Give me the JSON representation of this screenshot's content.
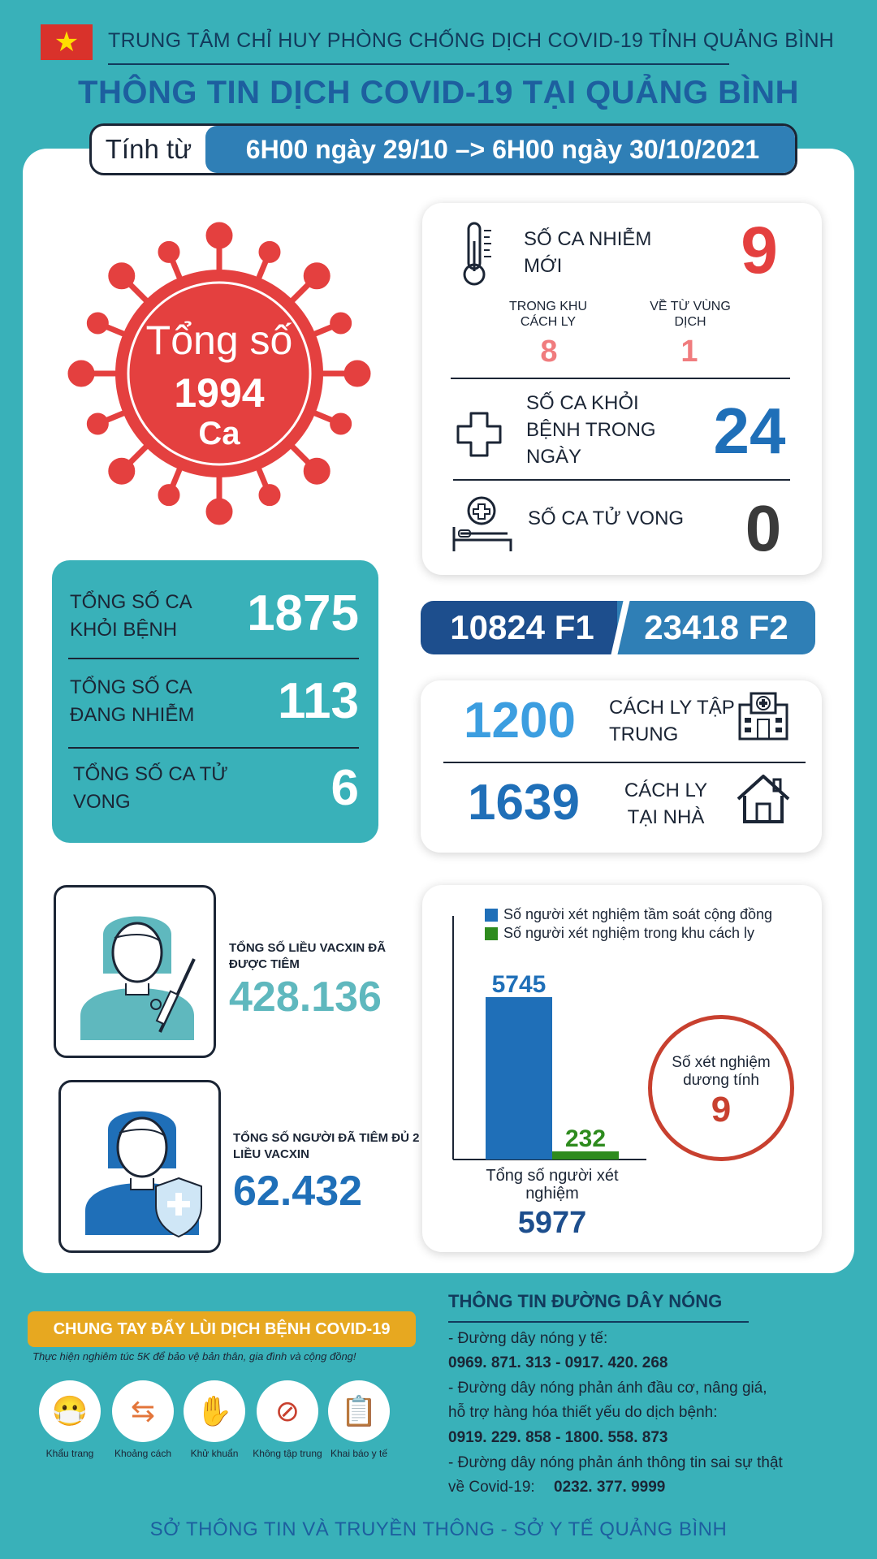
{
  "header": {
    "org": "TRUNG TÂM CHỈ HUY PHÒNG CHỐNG DỊCH COVID-19 TỈNH QUẢNG BÌNH",
    "title": "THÔNG TIN DỊCH COVID-19 TẠI QUẢNG BÌNH",
    "period_label": "Tính từ",
    "period_range": "6H00 ngày 29/10 –> 6H00 ngày 30/10/2021"
  },
  "total": {
    "label": "Tổng số",
    "value": "1994",
    "unit": "Ca"
  },
  "today": {
    "new_cases_label": "SỐ CA NHIỄM MỚI",
    "new_cases_value": "9",
    "sub_quarantine_label": "TRONG KHU CÁCH LY",
    "sub_quarantine_value": "8",
    "sub_epidemic_label": "VỀ TỪ VÙNG DỊCH",
    "sub_epidemic_value": "1",
    "recovered_label": "SỐ CA KHỎI BỆNH TRONG NGÀY",
    "recovered_value": "24",
    "deaths_label": "SỐ CA TỬ VONG",
    "deaths_value": "0"
  },
  "totals": [
    {
      "label": "TỔNG SỐ CA KHỎI BỆNH",
      "value": "1875"
    },
    {
      "label": "TỔNG SỐ CA ĐANG NHIỄM",
      "value": "113"
    },
    {
      "label": "TỔNG SỐ CA TỬ VONG",
      "value": "6"
    }
  ],
  "contacts": {
    "f1": "10824 F1",
    "f2": "23418 F2"
  },
  "isolation": [
    {
      "value": "1200",
      "label": "CÁCH LY TẬP TRUNG",
      "icon": "hospital-building-icon"
    },
    {
      "value": "1639",
      "label": "CÁCH LY TẠI NHÀ",
      "icon": "house-icon"
    }
  ],
  "vaccine": {
    "doses_label": "TỔNG SỐ LIỀU VACXIN ĐÃ ĐƯỢC TIÊM",
    "doses_value": "428.136",
    "full_label": "TỔNG SỐ NGƯỜI ĐÃ TIÊM ĐỦ 2 LIỀU VACXIN",
    "full_value": "62.432"
  },
  "chart_data": {
    "type": "bar",
    "categories": [
      ""
    ],
    "series": [
      {
        "name": "Số người xét nghiệm tầm soát cộng đồng",
        "values": [
          5745
        ],
        "color": "#1f6fb8"
      },
      {
        "name": "Số người xét nghiệm trong khu cách ly",
        "values": [
          232
        ],
        "color": "#2e8b1e"
      }
    ],
    "xlabel": "Tổng số người xét nghiệm",
    "total": "5977",
    "positive_label": "Số xét nghiệm dương tính",
    "positive_value": "9"
  },
  "campaign": {
    "banner": "CHUNG TAY ĐẨY LÙI DỊCH BỆNH COVID-19",
    "slogan": "Thực hiện nghiêm túc 5K để bảo vệ bản thân, gia đình và cộng đồng!",
    "items": [
      {
        "label": "Khẩu trang",
        "icon": "face-mask-icon"
      },
      {
        "label": "Khoảng cách",
        "icon": "distance-icon"
      },
      {
        "label": "Khử khuẩn",
        "icon": "hand-wash-icon"
      },
      {
        "label": "Không tập trung",
        "icon": "no-gathering-icon"
      },
      {
        "label": "Khai báo y tế",
        "icon": "health-declaration-icon"
      }
    ]
  },
  "hotline": {
    "title": "THÔNG TIN ĐƯỜNG DÂY NÓNG",
    "medical_label": "- Đường dây nóng y tế:",
    "medical_numbers": "0969. 871. 313  -  0917. 420. 268",
    "price_label_1": "- Đường dây nóng phản ánh đầu cơ, nâng giá,",
    "price_label_2": "hỗ trợ hàng hóa thiết yếu do dịch bệnh:",
    "price_numbers": "0919. 229. 858  -  1800. 558. 873",
    "fake_label_1": "- Đường dây nóng phản ánh thông tin sai sự thật",
    "fake_label_2": "về Covid-19:",
    "fake_number": "0232. 377. 9999"
  },
  "footer": "SỞ THÔNG TIN VÀ TRUYỀN THÔNG - SỞ Y TẾ QUẢNG BÌNH",
  "colors": {
    "teal": "#39b1b9",
    "red": "#e4403f",
    "blue": "#1f6fb8",
    "navy": "#1d4e8d",
    "green": "#2e8b1e",
    "gold": "#e7a820"
  }
}
